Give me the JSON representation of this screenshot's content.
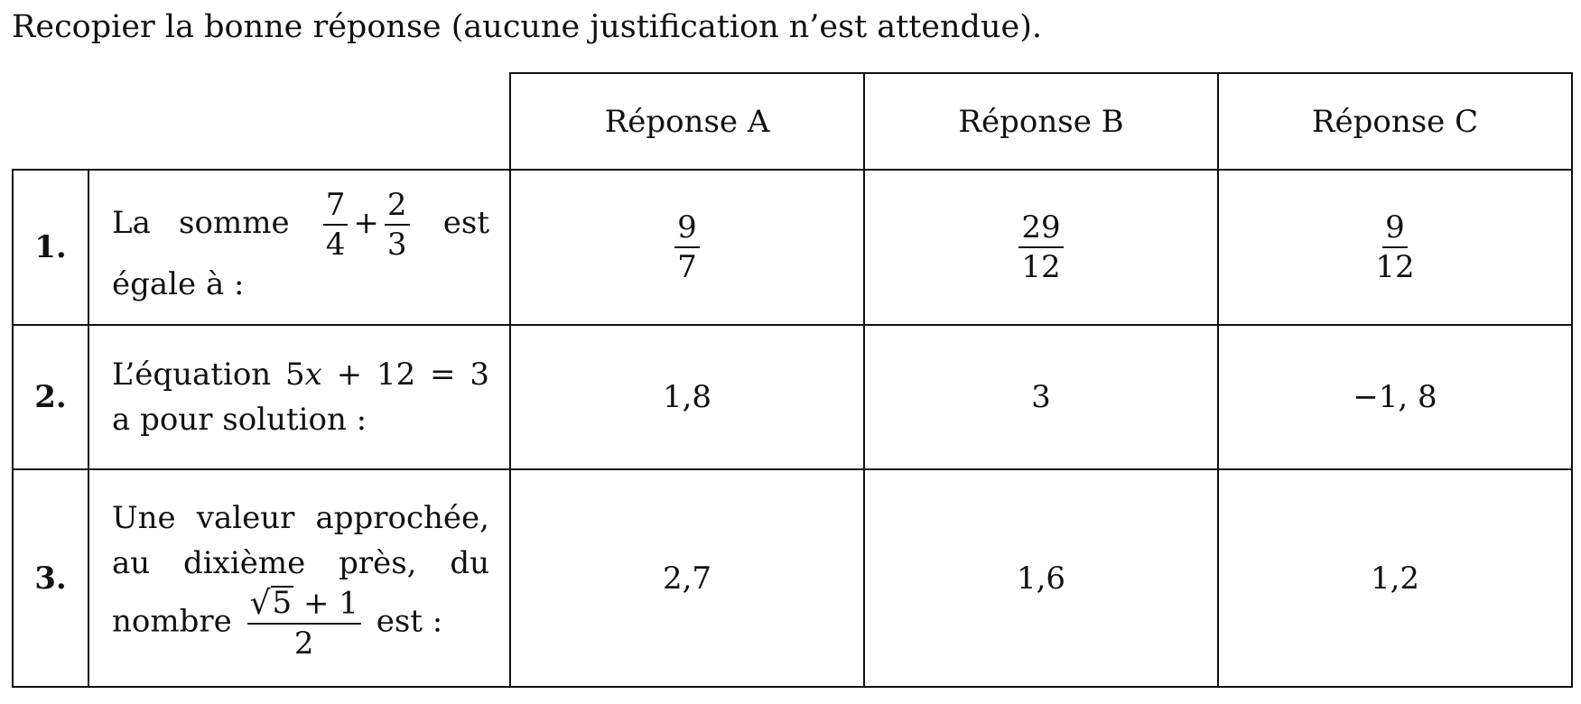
{
  "instruction": "Recopier la bonne réponse (aucune justification n’est attendue).",
  "table": {
    "headers": [
      "Réponse A",
      "Réponse B",
      "Réponse C"
    ],
    "rows": [
      {
        "number": "1.",
        "question": {
          "prefix": "La somme",
          "frac1_num": "7",
          "frac1_den": "4",
          "plus": "+",
          "frac2_num": "2",
          "frac2_den": "3",
          "suffix": "est égale à :"
        },
        "answers": [
          {
            "num": "9",
            "den": "7"
          },
          {
            "num": "29",
            "den": "12"
          },
          {
            "num": "9",
            "den": "12"
          }
        ]
      },
      {
        "number": "2.",
        "question": {
          "prefix": "L’équation 5",
          "variable": "x",
          "suffix": " + 12 = 3 a pour solution :"
        },
        "answers": [
          "1,8",
          "3",
          "−1, 8"
        ]
      },
      {
        "number": "3.",
        "question": {
          "prefix": "Une valeur approchée, au dixième près, du nombre",
          "radicand": "5",
          "num_tail": "+ 1",
          "den": "2",
          "suffix": "est :"
        },
        "answers": [
          "2,7",
          "1,6",
          "1,2"
        ]
      }
    ]
  }
}
